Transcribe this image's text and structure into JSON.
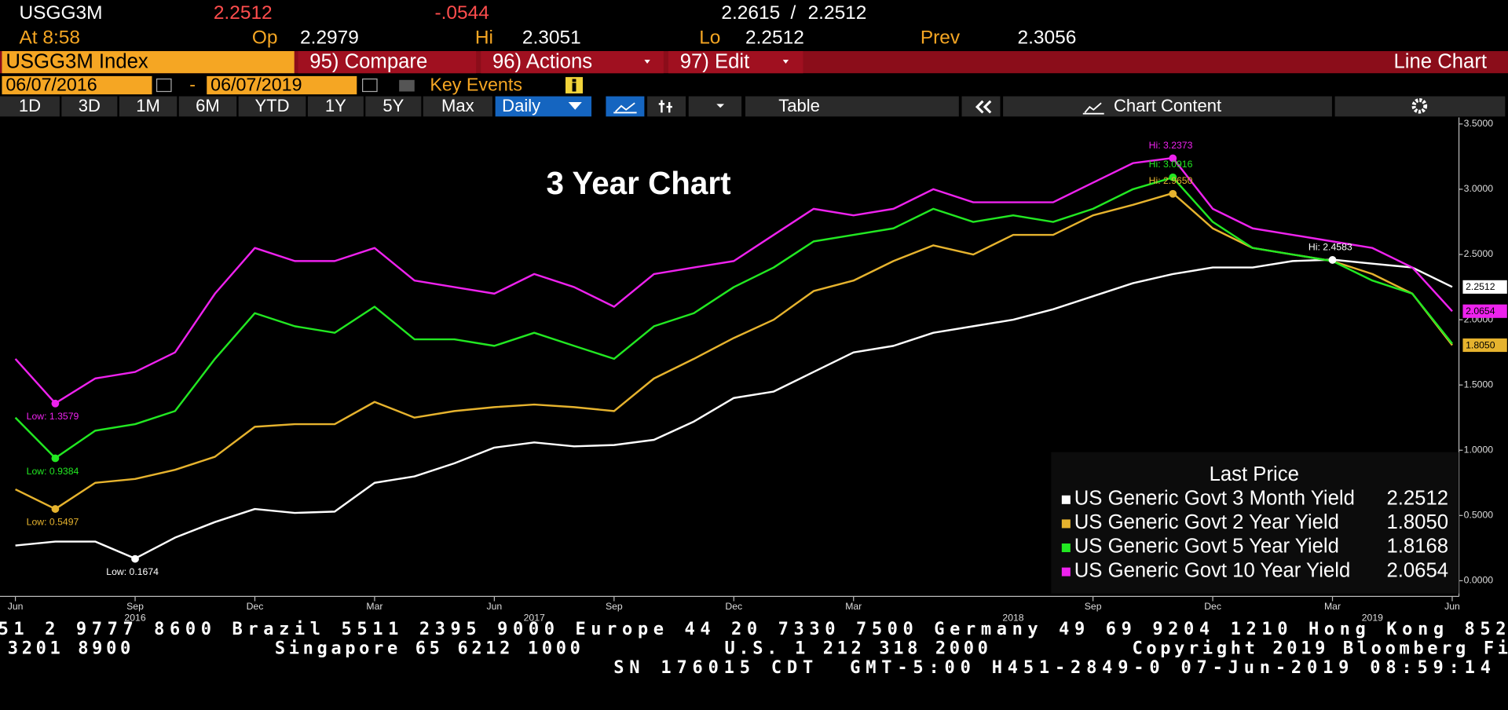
{
  "header": {
    "ticker": "USGG3M",
    "last": "2.2512",
    "change": "-.0544",
    "bid": "2.2615",
    "sep": "/",
    "ask": "2.2512",
    "time": "At 8:58",
    "open_label": "Op",
    "open": "2.2979",
    "high_label": "Hi",
    "high": "2.3051",
    "low_label": "Lo",
    "low": "2.2512",
    "prev_label": "Prev",
    "prev": "2.3056"
  },
  "menu": {
    "security": "USGG3M Index",
    "items": [
      "95) Compare",
      "96) Actions",
      "97) Edit"
    ],
    "view": "Line Chart"
  },
  "range": {
    "start": "06/07/2016",
    "dash": "-",
    "end": "06/07/2019",
    "key_events": "Key Events"
  },
  "toolbar": {
    "periods": [
      "1D",
      "3D",
      "1M",
      "6M",
      "YTD",
      "1Y",
      "5Y",
      "Max"
    ],
    "frequency": "Daily",
    "table": "Table",
    "content": "Chart Content"
  },
  "chart_data": {
    "type": "line",
    "title": "3 Year Chart",
    "x": [
      "2016-06",
      "2016-07",
      "2016-08",
      "2016-09",
      "2016-10",
      "2016-11",
      "2016-12",
      "2017-01",
      "2017-02",
      "2017-03",
      "2017-04",
      "2017-05",
      "2017-06",
      "2017-07",
      "2017-08",
      "2017-09",
      "2017-10",
      "2017-11",
      "2017-12",
      "2018-01",
      "2018-02",
      "2018-03",
      "2018-04",
      "2018-05",
      "2018-06",
      "2018-07",
      "2018-08",
      "2018-09",
      "2018-10",
      "2018-11",
      "2018-12",
      "2019-01",
      "2019-02",
      "2019-03",
      "2019-04",
      "2019-05",
      "2019-06"
    ],
    "series": [
      {
        "name": "US Generic Govt 3 Month Yield",
        "color": "#ffffff",
        "last_label": "2.2512",
        "price_tag": true,
        "values": [
          0.27,
          0.3,
          0.3,
          0.17,
          0.33,
          0.45,
          0.55,
          0.52,
          0.53,
          0.75,
          0.8,
          0.9,
          1.02,
          1.06,
          1.03,
          1.04,
          1.08,
          1.22,
          1.4,
          1.45,
          1.6,
          1.75,
          1.8,
          1.9,
          1.95,
          2.0,
          2.08,
          2.18,
          2.28,
          2.35,
          2.4,
          2.4,
          2.45,
          2.46,
          2.43,
          2.4,
          2.2512
        ]
      },
      {
        "name": "US Generic Govt 2 Year Yield",
        "color": "#e6b32e",
        "last_label": "1.8050",
        "price_tag": true,
        "values": [
          0.7,
          0.55,
          0.75,
          0.78,
          0.85,
          0.95,
          1.18,
          1.2,
          1.2,
          1.37,
          1.25,
          1.3,
          1.33,
          1.35,
          1.33,
          1.3,
          1.55,
          1.7,
          1.86,
          2.0,
          2.22,
          2.3,
          2.45,
          2.57,
          2.5,
          2.65,
          2.65,
          2.8,
          2.88,
          2.97,
          2.7,
          2.55,
          2.5,
          2.45,
          2.35,
          2.2,
          1.805
        ]
      },
      {
        "name": "US Generic Govt 5 Year Yield",
        "color": "#22e822",
        "last_label": "1.8168",
        "price_tag": false,
        "values": [
          1.25,
          0.94,
          1.15,
          1.2,
          1.3,
          1.7,
          2.05,
          1.95,
          1.9,
          2.1,
          1.85,
          1.85,
          1.8,
          1.9,
          1.8,
          1.7,
          1.95,
          2.05,
          2.25,
          2.4,
          2.6,
          2.65,
          2.7,
          2.85,
          2.75,
          2.8,
          2.75,
          2.85,
          3.0,
          3.09,
          2.75,
          2.55,
          2.5,
          2.45,
          2.3,
          2.2,
          1.8168
        ]
      },
      {
        "name": "US Generic Govt 10 Year Yield",
        "color": "#ee22ee",
        "last_label": "2.0654",
        "price_tag": true,
        "values": [
          1.7,
          1.36,
          1.55,
          1.6,
          1.75,
          2.2,
          2.55,
          2.45,
          2.45,
          2.55,
          2.3,
          2.25,
          2.2,
          2.35,
          2.25,
          2.1,
          2.35,
          2.4,
          2.45,
          2.65,
          2.85,
          2.8,
          2.85,
          3.0,
          2.9,
          2.9,
          2.9,
          3.05,
          3.2,
          3.24,
          2.85,
          2.7,
          2.65,
          2.6,
          2.55,
          2.4,
          2.0654
        ]
      }
    ],
    "annotations": [
      {
        "label": "Low: 1.3579",
        "x": "2016-07",
        "value": 1.3579,
        "color": "#ee22ee"
      },
      {
        "label": "Low: 0.9384",
        "x": "2016-07",
        "value": 0.9384,
        "color": "#22e822"
      },
      {
        "label": "Low: 0.5497",
        "x": "2016-07",
        "value": 0.5497,
        "color": "#e6b32e"
      },
      {
        "label": "Low: 0.1674",
        "x": "2016-09",
        "value": 0.1674,
        "color": "#ffffff"
      },
      {
        "label": "Hi: 3.2373",
        "x": "2018-11",
        "value": 3.2373,
        "color": "#ee22ee"
      },
      {
        "label": "Hi: 3.0916",
        "x": "2018-11",
        "value": 3.0916,
        "color": "#22e822"
      },
      {
        "label": "Hi: 2.9650",
        "x": "2018-11",
        "value": 2.965,
        "color": "#e6b32e"
      },
      {
        "label": "Hi: 2.4583",
        "x": "2019-03",
        "value": 2.4583,
        "color": "#ffffff"
      }
    ],
    "xlim": [
      "2016-06",
      "2019-06"
    ],
    "xticks": [
      {
        "value": "2016-06",
        "label": "Jun"
      },
      {
        "value": "2016-09",
        "label": "Sep"
      },
      {
        "value": "2016-12",
        "label": "Dec"
      },
      {
        "value": "2017-03",
        "label": "Mar"
      },
      {
        "value": "2017-06",
        "label": "Jun"
      },
      {
        "value": "2017-09",
        "label": "Sep"
      },
      {
        "value": "2017-12",
        "label": "Dec"
      },
      {
        "value": "2018-03",
        "label": "Mar"
      },
      {
        "value": "2018-09",
        "label": "Sep"
      },
      {
        "value": "2018-12",
        "label": "Dec"
      },
      {
        "value": "2019-03",
        "label": "Mar"
      },
      {
        "value": "2019-06",
        "label": "Jun"
      }
    ],
    "xyears": [
      {
        "value": "2016-09",
        "label": "2016"
      },
      {
        "value": "2017-07",
        "label": "2017"
      },
      {
        "value": "2018-07",
        "label": "2018"
      },
      {
        "value": "2019-04",
        "label": "2019"
      }
    ],
    "ylim": [
      -0.12,
      3.55
    ],
    "yticks": [
      {
        "value": 0,
        "label": "0.0000"
      },
      {
        "value": 0.5,
        "label": "0.5000"
      },
      {
        "value": 1,
        "label": "1.0000"
      },
      {
        "value": 1.5,
        "label": "1.5000"
      },
      {
        "value": 2,
        "label": "2.0000"
      },
      {
        "value": 2.5,
        "label": "2.5000"
      },
      {
        "value": 3,
        "label": "3.0000"
      },
      {
        "value": 3.5,
        "label": "3.5000"
      }
    ],
    "yaxis_position": "right",
    "grid": false,
    "legend": {
      "title": "Last Price",
      "position": "lower right"
    }
  },
  "footer": {
    "lines": [
      "51 2 9777 8600 Brazil 5511 2395 9000 Europe 44 20 7330 7500 Germany 49 69 9204 1210 Hong Kong 852",
      "3201 8900          Singapore 65 6212 1000          U.S. 1 212 318 2000          Copyright 2019 Bloomberg Fi",
      "SN 176015 CDT  GMT-5:00 H451-2849-0 07-Jun-2019 08:59:14"
    ]
  }
}
